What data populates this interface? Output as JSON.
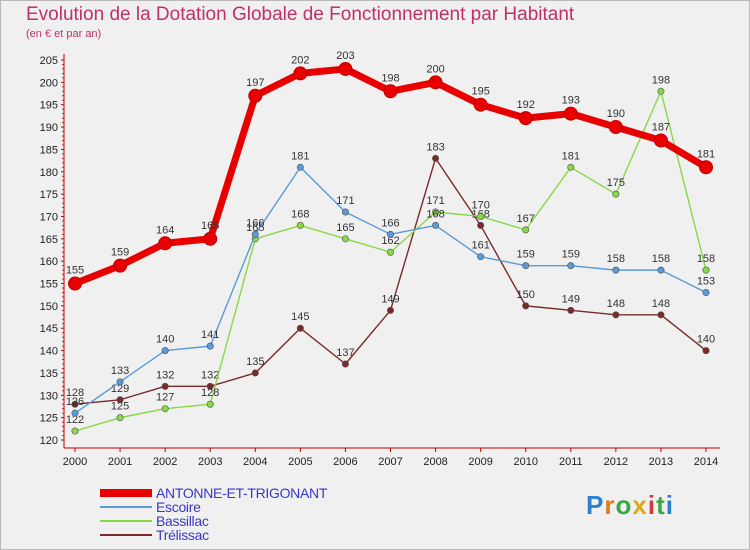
{
  "title": "Evolution de la Dotation Globale de Fonctionnement par Habitant",
  "subtitle": "(en € et par an)",
  "logo": "Proxiti",
  "colors": {
    "title": "#c0306a",
    "axis": "#c00000",
    "legend_text": "#3838c8"
  },
  "chart_data": {
    "type": "line",
    "title": "Evolution de la Dotation Globale de Fonctionnement par Habitant",
    "subtitle": "(en € et par an)",
    "xlabel": "",
    "ylabel": "",
    "ylim": [
      120,
      205
    ],
    "yticks": [
      120,
      125,
      130,
      135,
      140,
      145,
      150,
      155,
      160,
      165,
      170,
      175,
      180,
      185,
      190,
      195,
      200,
      205
    ],
    "grid": false,
    "legend": "bottom-left",
    "x": [
      "2000",
      "2001",
      "2002",
      "2003",
      "2004",
      "2005",
      "2006",
      "2007",
      "2008",
      "2009",
      "2010",
      "2011",
      "2012",
      "2013",
      "2014"
    ],
    "series": [
      {
        "name": "Trélissac",
        "color": "#7a2a2a",
        "values": [
          128,
          129,
          132,
          132,
          135,
          145,
          137,
          149,
          183,
          168,
          150,
          149,
          148,
          148,
          140
        ]
      },
      {
        "name": "Bassillac",
        "color": "#88d848",
        "values": [
          122,
          125,
          127,
          128,
          165,
          168,
          165,
          162,
          171,
          170,
          167,
          181,
          175,
          198,
          158
        ]
      },
      {
        "name": "Escoire",
        "color": "#5a9ad8",
        "values": [
          126,
          133,
          140,
          141,
          166,
          181,
          171,
          166,
          168,
          161,
          159,
          159,
          158,
          158,
          153
        ]
      },
      {
        "name": "ANTONNE-ET-TRIGONANT",
        "color": "#e80000",
        "values": [
          155,
          159,
          164,
          165,
          197,
          202,
          203,
          198,
          200,
          195,
          192,
          193,
          190,
          187,
          181
        ]
      }
    ]
  }
}
